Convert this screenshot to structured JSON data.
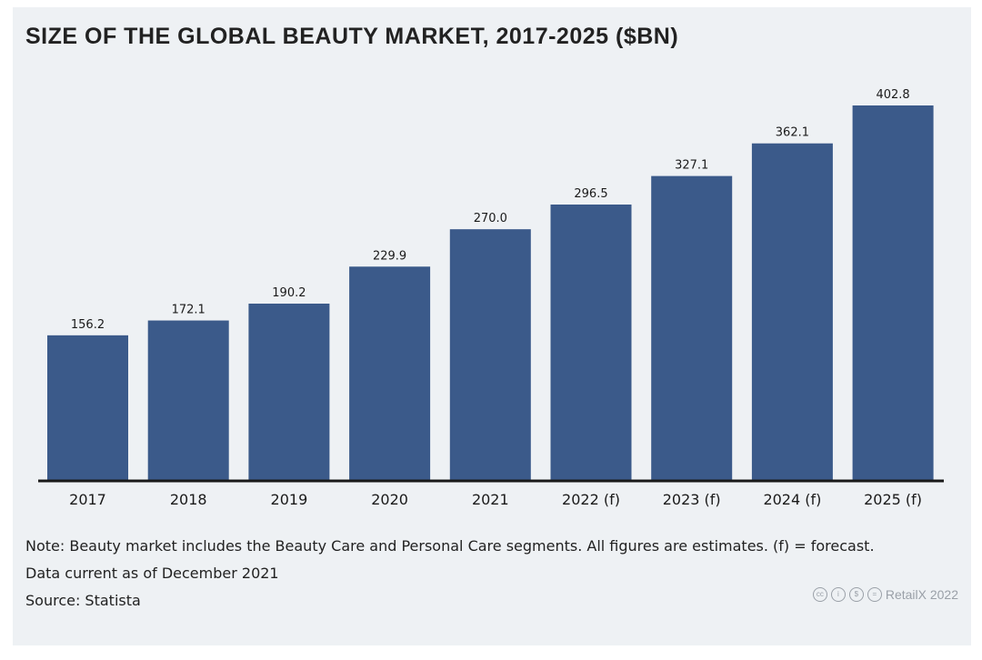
{
  "chart_data": {
    "type": "bar",
    "title": "SIZE OF THE GLOBAL BEAUTY MARKET, 2017-2025 ($BN)",
    "categories": [
      "2017",
      "2018",
      "2019",
      "2020",
      "2021",
      "2022 (f)",
      "2023 (f)",
      "2024 (f)",
      "2025 (f)"
    ],
    "values": [
      156.2,
      172.1,
      190.2,
      229.9,
      270.0,
      296.5,
      327.1,
      362.1,
      402.8
    ],
    "value_labels": [
      "156.2",
      "172.1",
      "190.2",
      "229.9",
      "270.0",
      "296.5",
      "327.1",
      "362.1",
      "402.8"
    ],
    "ylim": [
      0,
      402.8
    ],
    "grid": false,
    "bar_color": "#3b5a8a",
    "xlabel": "",
    "ylabel": ""
  },
  "notes": {
    "line1": "Note: Beauty market includes the Beauty Care and Personal Care segments. All figures are estimates. (f) = forecast.",
    "line2": "Data current as of December 2021",
    "line3": "Source: Statista"
  },
  "credit": {
    "icons": [
      "cc-icon",
      "by-icon",
      "nc-icon",
      "nd-icon"
    ],
    "text": "RetailX 2022"
  }
}
